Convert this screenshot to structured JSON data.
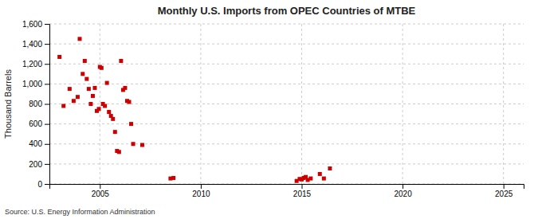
{
  "chart_data": {
    "type": "scatter",
    "title": "Monthly U.S. Imports from OPEC Countries of MTBE",
    "ylabel": "Thousand Barrels",
    "annotation": "Source: U.S. Energy Information Administration",
    "color": "#cc0000",
    "marker": "square",
    "grid": true,
    "xlim": [
      2002.5,
      2026
    ],
    "ylim": [
      0,
      1600
    ],
    "xticks": [
      2005,
      2010,
      2015,
      2020,
      2025
    ],
    "yticks": [
      0,
      200,
      400,
      600,
      800,
      {
        "value": 1000,
        "label": "1,000"
      },
      {
        "value": 1200,
        "label": "1,200"
      },
      {
        "value": 1400,
        "label": "1,400"
      },
      {
        "value": 1600,
        "label": "1,600"
      }
    ],
    "x": [
      2003.0,
      2003.2,
      2003.5,
      2003.7,
      2003.9,
      2004.0,
      2004.15,
      2004.25,
      2004.35,
      2004.45,
      2004.55,
      2004.65,
      2004.75,
      2004.85,
      2004.95,
      2005.0,
      2005.08,
      2005.15,
      2005.25,
      2005.35,
      2005.45,
      2005.55,
      2005.65,
      2005.75,
      2005.85,
      2005.95,
      2006.05,
      2006.15,
      2006.25,
      2006.35,
      2006.45,
      2006.55,
      2006.65,
      2007.1,
      2008.5,
      2008.65,
      2014.75,
      2014.9,
      2015.0,
      2015.1,
      2015.2,
      2015.3,
      2015.45,
      2015.9,
      2016.1,
      2016.4
    ],
    "values": [
      1270,
      780,
      950,
      830,
      870,
      1450,
      1100,
      1230,
      1050,
      950,
      800,
      880,
      960,
      730,
      750,
      1170,
      1160,
      800,
      780,
      1010,
      720,
      680,
      650,
      520,
      330,
      320,
      1230,
      940,
      960,
      830,
      820,
      600,
      400,
      390,
      55,
      60,
      30,
      50,
      45,
      60,
      70,
      40,
      55,
      100,
      55,
      155
    ]
  }
}
